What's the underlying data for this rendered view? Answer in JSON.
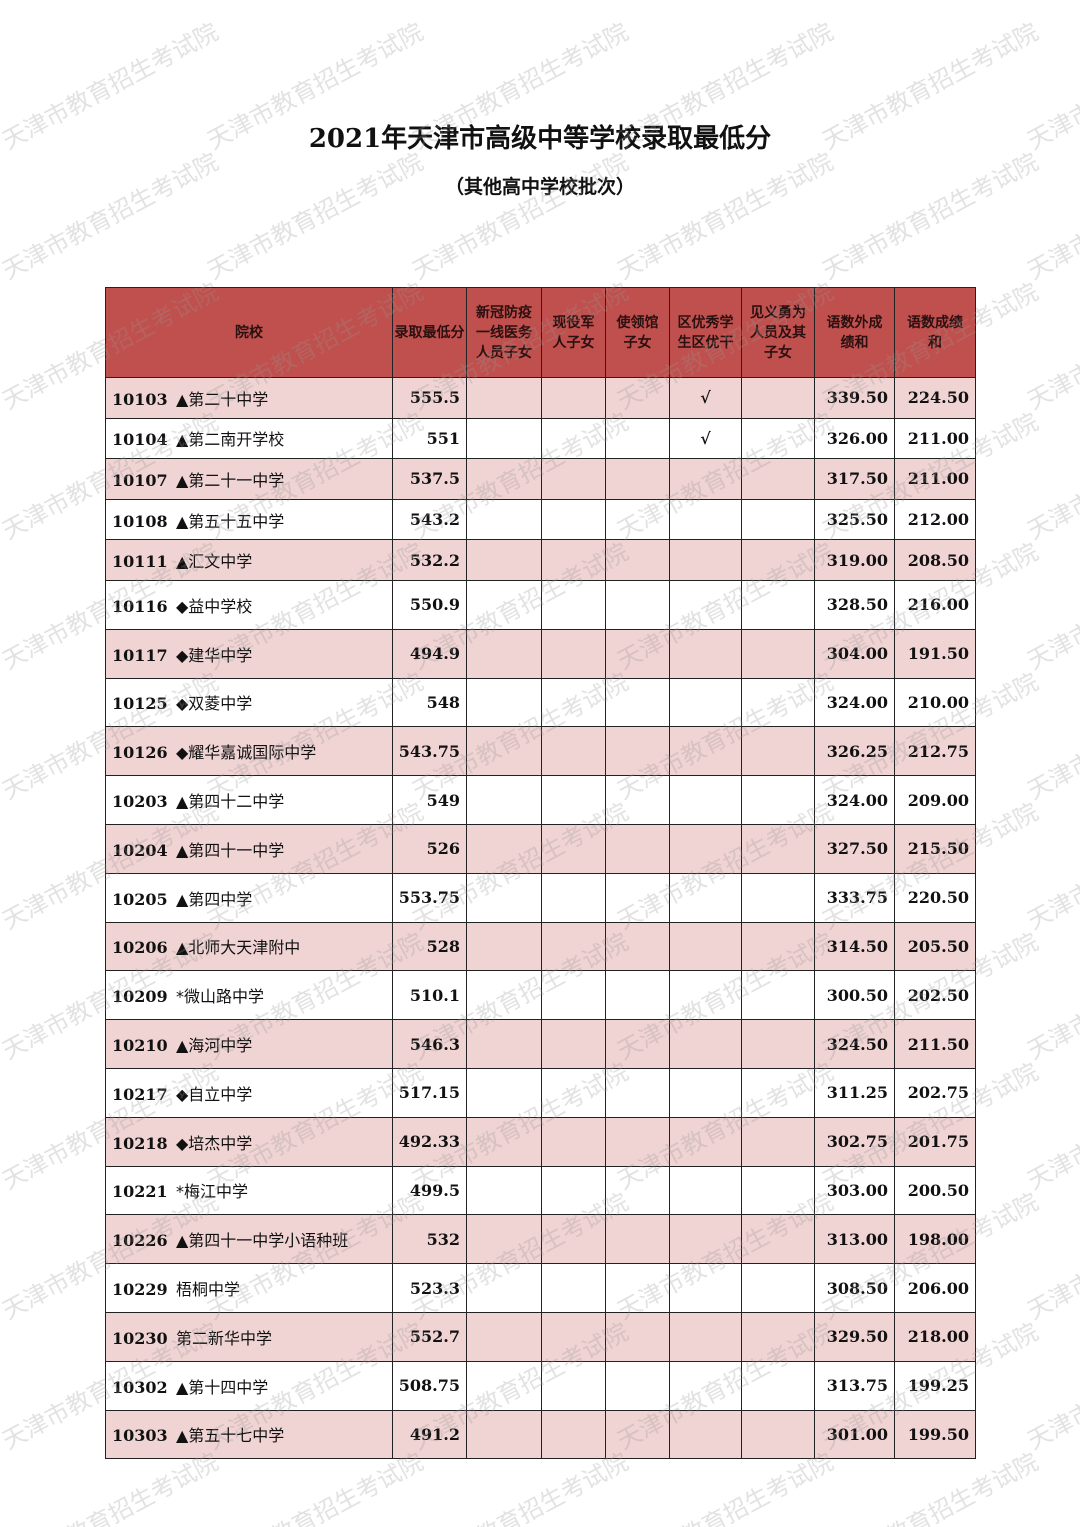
{
  "document": {
    "title": "2021年天津市高级中等学校录取最低分",
    "subtitle": "（其他高中学校批次）",
    "watermark": "天津市教育招生考试院",
    "colors": {
      "header_bg": "#c0504d",
      "odd_row_bg": "#f0d3d3",
      "even_row_bg": "#ffffff"
    }
  },
  "table": {
    "headers": [
      "院校",
      "录取最低分",
      "新冠防疫一线医务人员子女",
      "现役军人子女",
      "使领馆子女",
      "区优秀学生区优干",
      "见义勇为人员及其子女",
      "语数外成绩和",
      "语数成绩和"
    ],
    "rows": [
      {
        "code": "10103",
        "name": "▲第二十中学",
        "min": "555.5",
        "c1": "",
        "c2": "",
        "c3": "",
        "c4": "√",
        "c5": "",
        "s1": "339.50",
        "s2": "224.50"
      },
      {
        "code": "10104",
        "name": "▲第二南开学校",
        "min": "551",
        "c1": "",
        "c2": "",
        "c3": "",
        "c4": "√",
        "c5": "",
        "s1": "326.00",
        "s2": "211.00"
      },
      {
        "code": "10107",
        "name": "▲第二十一中学",
        "min": "537.5",
        "c1": "",
        "c2": "",
        "c3": "",
        "c4": "",
        "c5": "",
        "s1": "317.50",
        "s2": "211.00"
      },
      {
        "code": "10108",
        "name": "▲第五十五中学",
        "min": "543.2",
        "c1": "",
        "c2": "",
        "c3": "",
        "c4": "",
        "c5": "",
        "s1": "325.50",
        "s2": "212.00"
      },
      {
        "code": "10111",
        "name": "▲汇文中学",
        "min": "532.2",
        "c1": "",
        "c2": "",
        "c3": "",
        "c4": "",
        "c5": "",
        "s1": "319.00",
        "s2": "208.50"
      },
      {
        "code": "10116",
        "name": "◆益中学校",
        "min": "550.9",
        "c1": "",
        "c2": "",
        "c3": "",
        "c4": "",
        "c5": "",
        "s1": "328.50",
        "s2": "216.00"
      },
      {
        "code": "10117",
        "name": "◆建华中学",
        "min": "494.9",
        "c1": "",
        "c2": "",
        "c3": "",
        "c4": "",
        "c5": "",
        "s1": "304.00",
        "s2": "191.50"
      },
      {
        "code": "10125",
        "name": "◆双菱中学",
        "min": "548",
        "c1": "",
        "c2": "",
        "c3": "",
        "c4": "",
        "c5": "",
        "s1": "324.00",
        "s2": "210.00"
      },
      {
        "code": "10126",
        "name": "◆耀华嘉诚国际中学",
        "min": "543.75",
        "c1": "",
        "c2": "",
        "c3": "",
        "c4": "",
        "c5": "",
        "s1": "326.25",
        "s2": "212.75"
      },
      {
        "code": "10203",
        "name": "▲第四十二中学",
        "min": "549",
        "c1": "",
        "c2": "",
        "c3": "",
        "c4": "",
        "c5": "",
        "s1": "324.00",
        "s2": "209.00"
      },
      {
        "code": "10204",
        "name": "▲第四十一中学",
        "min": "526",
        "c1": "",
        "c2": "",
        "c3": "",
        "c4": "",
        "c5": "",
        "s1": "327.50",
        "s2": "215.50"
      },
      {
        "code": "10205",
        "name": "▲第四中学",
        "min": "553.75",
        "c1": "",
        "c2": "",
        "c3": "",
        "c4": "",
        "c5": "",
        "s1": "333.75",
        "s2": "220.50"
      },
      {
        "code": "10206",
        "name": "▲北师大天津附中",
        "min": "528",
        "c1": "",
        "c2": "",
        "c3": "",
        "c4": "",
        "c5": "",
        "s1": "314.50",
        "s2": "205.50"
      },
      {
        "code": "10209",
        "name": "*微山路中学",
        "min": "510.1",
        "c1": "",
        "c2": "",
        "c3": "",
        "c4": "",
        "c5": "",
        "s1": "300.50",
        "s2": "202.50"
      },
      {
        "code": "10210",
        "name": "▲海河中学",
        "min": "546.3",
        "c1": "",
        "c2": "",
        "c3": "",
        "c4": "",
        "c5": "",
        "s1": "324.50",
        "s2": "211.50"
      },
      {
        "code": "10217",
        "name": "◆自立中学",
        "min": "517.15",
        "c1": "",
        "c2": "",
        "c3": "",
        "c4": "",
        "c5": "",
        "s1": "311.25",
        "s2": "202.75"
      },
      {
        "code": "10218",
        "name": "◆培杰中学",
        "min": "492.33",
        "c1": "",
        "c2": "",
        "c3": "",
        "c4": "",
        "c5": "",
        "s1": "302.75",
        "s2": "201.75"
      },
      {
        "code": "10221",
        "name": "*梅江中学",
        "min": "499.5",
        "c1": "",
        "c2": "",
        "c3": "",
        "c4": "",
        "c5": "",
        "s1": "303.00",
        "s2": "200.50"
      },
      {
        "code": "10226",
        "name": "▲第四十一中学小语种班",
        "min": "532",
        "c1": "",
        "c2": "",
        "c3": "",
        "c4": "",
        "c5": "",
        "s1": "313.00",
        "s2": "198.00"
      },
      {
        "code": "10229",
        "name": "梧桐中学",
        "min": "523.3",
        "c1": "",
        "c2": "",
        "c3": "",
        "c4": "",
        "c5": "",
        "s1": "308.50",
        "s2": "206.00"
      },
      {
        "code": "10230",
        "name": "第二新华中学",
        "min": "552.7",
        "c1": "",
        "c2": "",
        "c3": "",
        "c4": "",
        "c5": "",
        "s1": "329.50",
        "s2": "218.00"
      },
      {
        "code": "10302",
        "name": "▲第十四中学",
        "min": "508.75",
        "c1": "",
        "c2": "",
        "c3": "",
        "c4": "",
        "c5": "",
        "s1": "313.75",
        "s2": "199.25"
      },
      {
        "code": "10303",
        "name": "▲第五十七中学",
        "min": "491.2",
        "c1": "",
        "c2": "",
        "c3": "",
        "c4": "",
        "c5": "",
        "s1": "301.00",
        "s2": "199.50"
      }
    ]
  }
}
